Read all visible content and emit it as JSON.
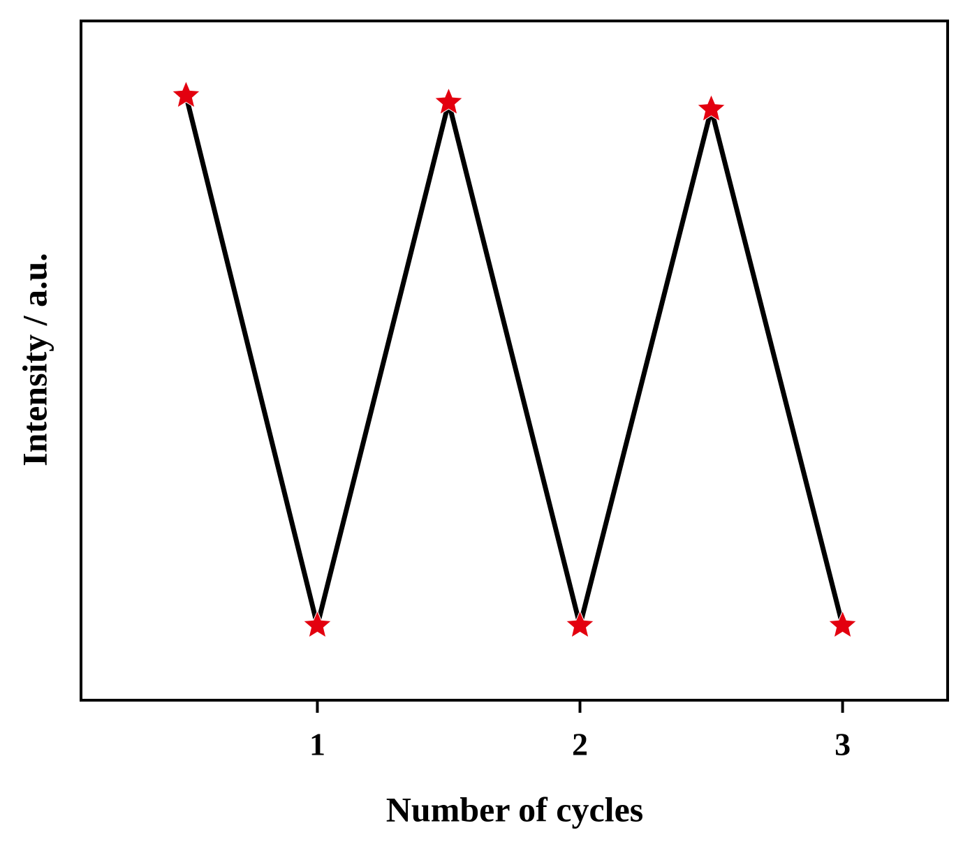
{
  "chart_data": {
    "type": "line",
    "x_label": "Number of cycles",
    "y_label": "Intensity / a.u.",
    "x": [
      0.5,
      1,
      1.5,
      2,
      2.5,
      3
    ],
    "values": [
      0.89,
      0.11,
      0.88,
      0.11,
      0.87,
      0.11
    ],
    "line_color": "#000000",
    "marker_color": "#e3000f",
    "marker": "star",
    "xlim": [
      0.1,
      3.4
    ],
    "xticks": [
      1,
      2,
      3
    ],
    "ylim": [
      0,
      1
    ],
    "grid": false
  }
}
